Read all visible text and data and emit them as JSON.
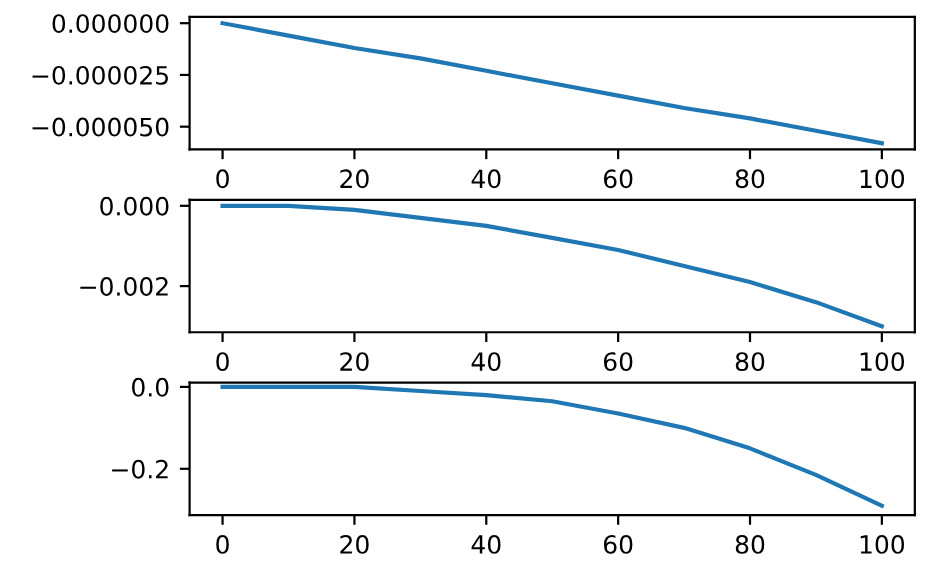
{
  "chart_data": [
    {
      "type": "line",
      "x": [
        0,
        10,
        20,
        30,
        40,
        50,
        60,
        70,
        80,
        90,
        100
      ],
      "series": [
        {
          "color": "#1f77b4",
          "values": [
            0,
            -6e-06,
            -1.2e-05,
            -1.7e-05,
            -2.3e-05,
            -2.9e-05,
            -3.5e-05,
            -4.1e-05,
            -4.6e-05,
            -5.2e-05,
            -5.8e-05
          ]
        }
      ],
      "xlim": [
        -5,
        105
      ],
      "xticks": [
        0,
        20,
        40,
        60,
        80,
        100
      ],
      "ylim": [
        -6.1e-05,
        3e-06
      ],
      "yticks": [
        {
          "value": 0,
          "label": "0.000000"
        },
        {
          "value": -2.5e-05,
          "label": "−0.000025"
        },
        {
          "value": -5e-05,
          "label": "−0.000050"
        }
      ],
      "grid": false,
      "legend": false
    },
    {
      "type": "line",
      "x": [
        0,
        10,
        20,
        30,
        40,
        50,
        60,
        70,
        80,
        90,
        100
      ],
      "series": [
        {
          "color": "#1f77b4",
          "values": [
            0,
            0,
            -0.0001,
            -0.0003,
            -0.0005,
            -0.0008,
            -0.0011,
            -0.0015,
            -0.0019,
            -0.0024,
            -0.003
          ]
        }
      ],
      "xlim": [
        -5,
        105
      ],
      "xticks": [
        0,
        20,
        40,
        60,
        80,
        100
      ],
      "ylim": [
        -0.00315,
        0.00015
      ],
      "yticks": [
        {
          "value": 0,
          "label": "0.000"
        },
        {
          "value": -0.002,
          "label": "−0.002"
        }
      ],
      "grid": false,
      "legend": false
    },
    {
      "type": "line",
      "x": [
        0,
        10,
        20,
        30,
        40,
        50,
        60,
        70,
        80,
        90,
        100
      ],
      "series": [
        {
          "color": "#1f77b4",
          "values": [
            0,
            0,
            0,
            -0.01,
            -0.02,
            -0.035,
            -0.065,
            -0.1,
            -0.15,
            -0.215,
            -0.29
          ]
        }
      ],
      "xlim": [
        -5,
        105
      ],
      "xticks": [
        0,
        20,
        40,
        60,
        80,
        100
      ],
      "ylim": [
        -0.313,
        0.0105
      ],
      "yticks": [
        {
          "value": 0,
          "label": "0.0"
        },
        {
          "value": -0.2,
          "label": "−0.2"
        }
      ],
      "grid": false,
      "legend": false
    }
  ]
}
